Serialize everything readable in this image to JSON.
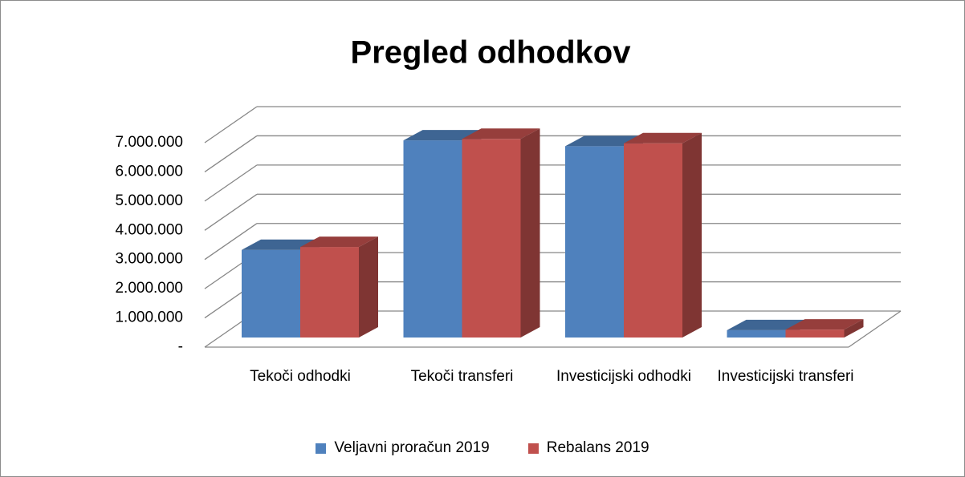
{
  "chart_data": {
    "type": "bar3d",
    "title": "Pregled odhodkov",
    "categories": [
      "Tekoči odhodki",
      "Tekoči transferi",
      "Investicijski odhodki",
      "Investicijski transferi"
    ],
    "series": [
      {
        "name": "Veljavni proračun 2019",
        "color": "#4f81bd",
        "values": [
          3000000,
          6750000,
          6550000,
          250000
        ]
      },
      {
        "name": "Rebalans 2019",
        "color": "#c0504d",
        "values": [
          3100000,
          6800000,
          6650000,
          270000
        ]
      }
    ],
    "ylim": [
      0,
      7000000
    ],
    "yticks": [
      {
        "value": 0,
        "label": "-"
      },
      {
        "value": 1000000,
        "label": "1.000.000"
      },
      {
        "value": 2000000,
        "label": "2.000.000"
      },
      {
        "value": 3000000,
        "label": "3.000.000"
      },
      {
        "value": 4000000,
        "label": "4.000.000"
      },
      {
        "value": 5000000,
        "label": "5.000.000"
      },
      {
        "value": 6000000,
        "label": "6.000.000"
      },
      {
        "value": 7000000,
        "label": "7.000.000"
      }
    ],
    "grid": true,
    "legend": "bottom"
  }
}
